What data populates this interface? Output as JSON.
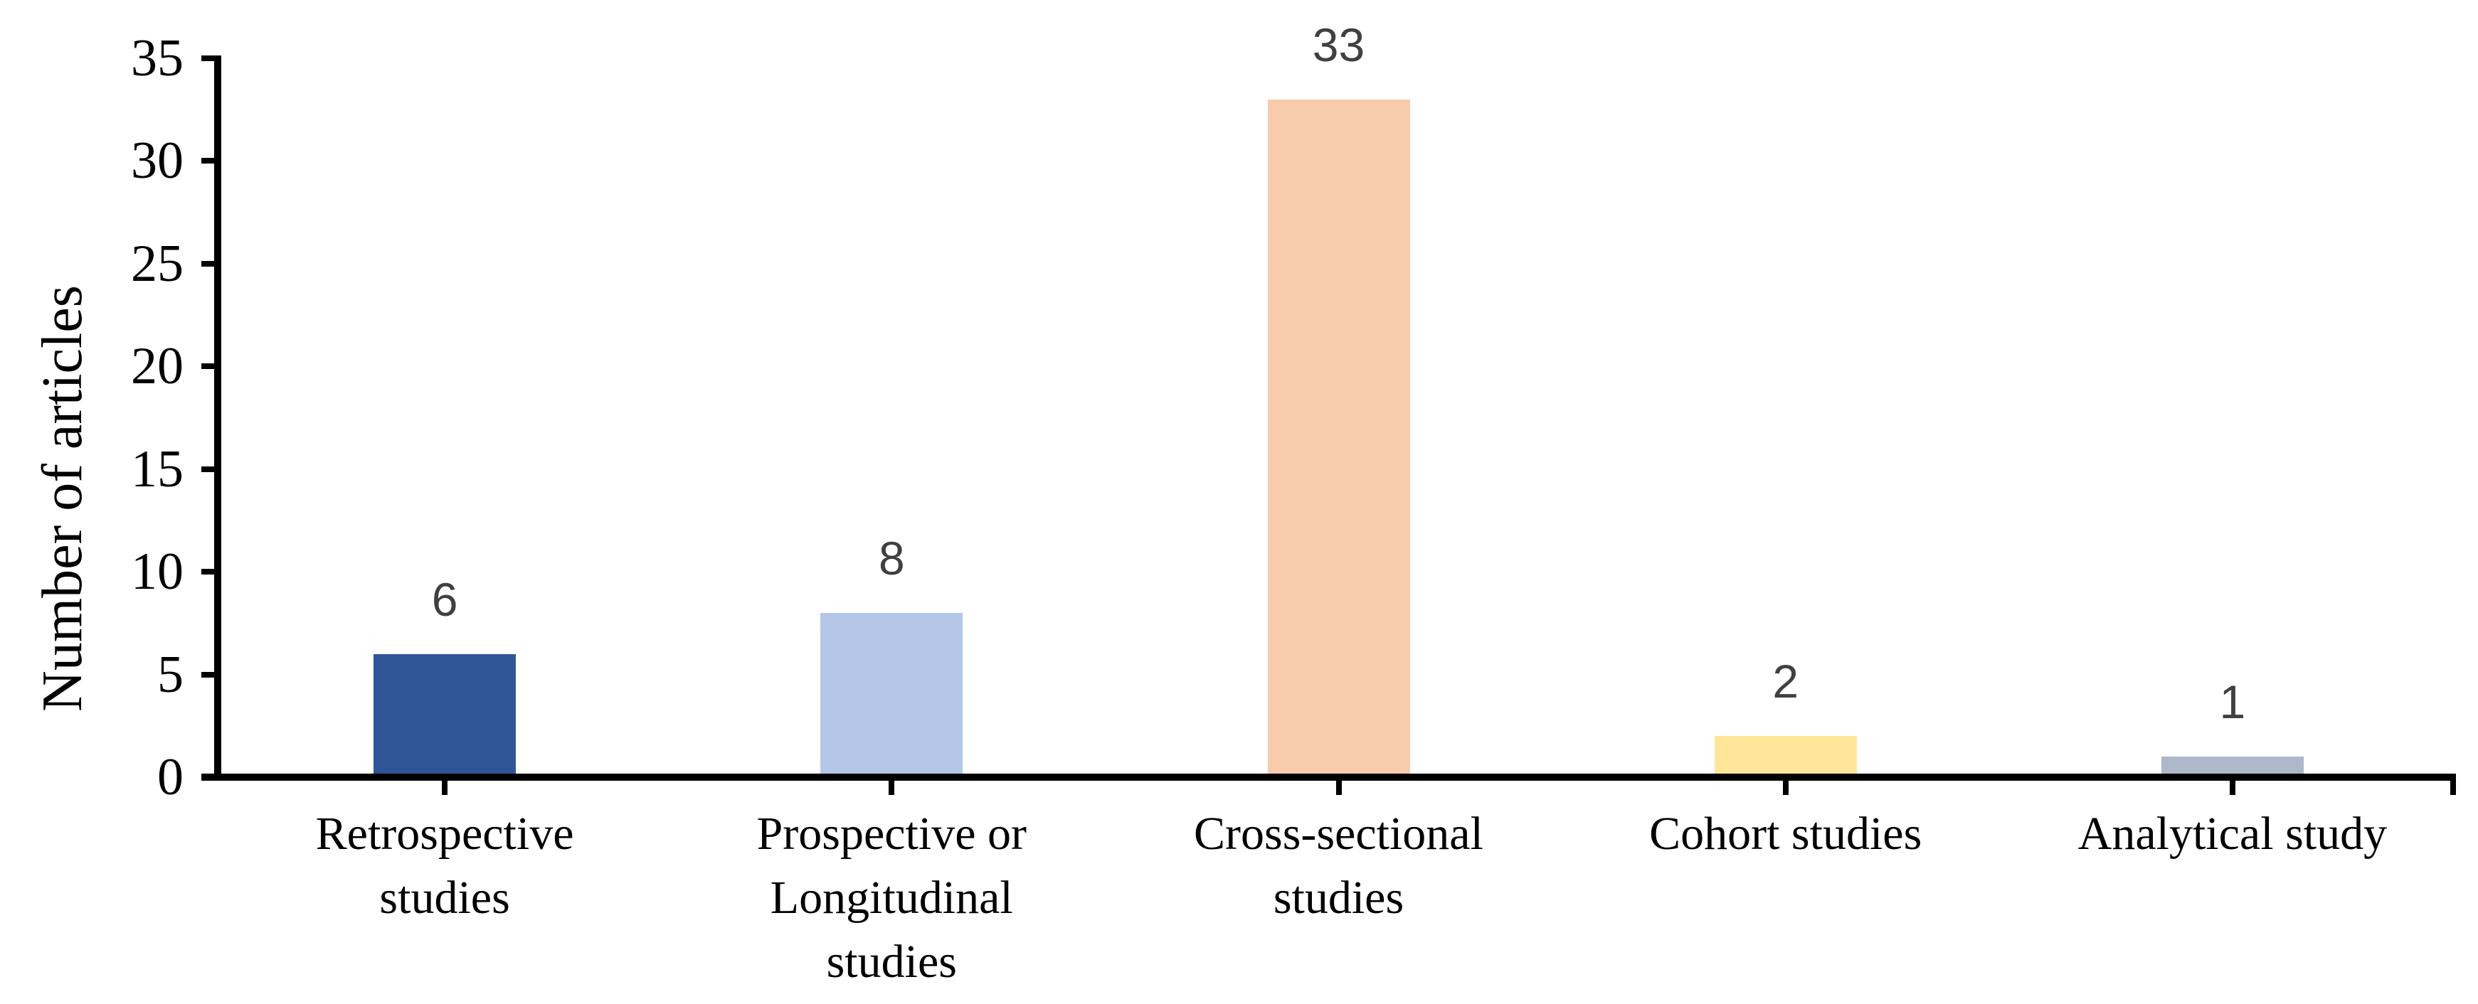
{
  "chart_data": {
    "type": "bar",
    "title": "",
    "xlabel": "",
    "ylabel": "Number of articles",
    "categories": [
      "Retrospective studies",
      "Prospective or Longitudinal studies",
      "Cross-sectional studies",
      "Cohort studies",
      "Analytical study"
    ],
    "category_lines": [
      [
        "Retrospective",
        "studies"
      ],
      [
        "Prospective or",
        "Longitudinal",
        "studies"
      ],
      [
        "Cross-sectional",
        "studies"
      ],
      [
        "Cohort studies"
      ],
      [
        "Analytical study"
      ]
    ],
    "values": [
      6,
      8,
      33,
      2,
      1
    ],
    "data_labels": [
      "6",
      "8",
      "33",
      "2",
      "1"
    ],
    "bar_colors": [
      "#2F5597",
      "#B4C7E7",
      "#F8CBAD",
      "#FFE699",
      "#ADB9CA"
    ],
    "ylim": [
      0,
      35
    ],
    "yticks": [
      "0",
      "5",
      "10",
      "15",
      "20",
      "25",
      "30",
      "35"
    ],
    "ytick_step": 5,
    "grid": false,
    "legend": "none",
    "axis_color": "#000000",
    "value_label_color": "#404040",
    "background_color": "#FFFFFF"
  }
}
